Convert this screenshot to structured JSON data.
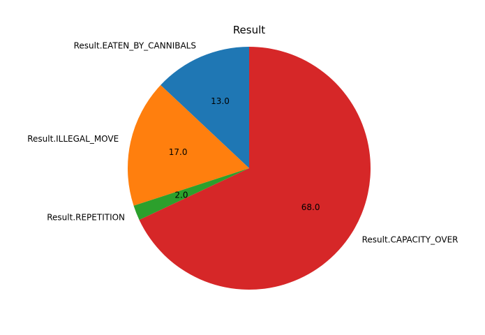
{
  "chart_data": {
    "type": "pie",
    "title": "Result",
    "labels": [
      "Result.EATEN_BY_CANNIBALS",
      "Result.ILLEGAL_MOVE",
      "Result.REPETITION",
      "Result.CAPACITY_OVER"
    ],
    "values": [
      13.0,
      17.0,
      2.0,
      68.0
    ],
    "value_labels": [
      "13.0",
      "17.0",
      "2.0",
      "68.0"
    ],
    "colors": [
      "#1f77b4",
      "#ff7f0e",
      "#2ca02c",
      "#d62728"
    ],
    "start_angle_deg": 90,
    "direction": "counterclockwise"
  }
}
